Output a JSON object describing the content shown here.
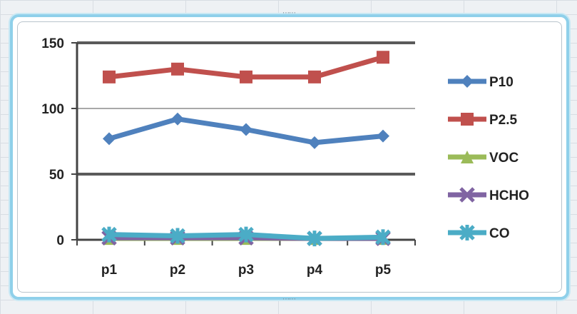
{
  "chart_data": {
    "type": "line",
    "categories": [
      "p1",
      "p2",
      "p3",
      "p4",
      "p5"
    ],
    "y_ticks": [
      0,
      50,
      100,
      150
    ],
    "ylim": [
      0,
      150
    ],
    "grid": true,
    "legend_position": "right",
    "series": [
      {
        "name": "P10",
        "values": [
          77,
          92,
          84,
          74,
          79
        ],
        "color": "#4f81bd",
        "marker": "diamond"
      },
      {
        "name": "P2.5",
        "values": [
          124,
          130,
          124,
          124,
          139
        ],
        "color": "#c0504d",
        "marker": "square"
      },
      {
        "name": "VOC",
        "values": [
          1,
          1,
          1,
          1,
          1
        ],
        "color": "#9bbb59",
        "marker": "triangle"
      },
      {
        "name": "HCHO",
        "values": [
          1.5,
          1.5,
          1.5,
          1,
          1
        ],
        "color": "#8064a2",
        "marker": "x"
      },
      {
        "name": "CO",
        "values": [
          4,
          3,
          4,
          1,
          2
        ],
        "color": "#4bacc6",
        "marker": "star"
      }
    ]
  }
}
